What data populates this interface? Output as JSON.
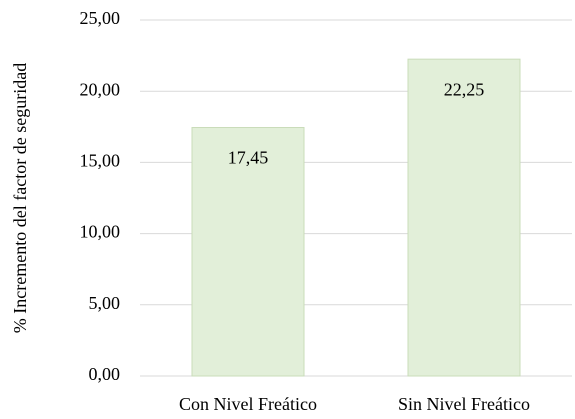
{
  "chart_data": {
    "type": "bar",
    "y_label": "% Incremento del factor de seguridad",
    "categories": [
      "Con Nivel Freático",
      "Sin Nivel Freático"
    ],
    "values": [
      17.45,
      22.25
    ],
    "value_labels": [
      "17,45",
      "22,25"
    ],
    "color": "#e2efd9",
    "ylim": [
      0,
      25
    ],
    "yticks": [
      {
        "value": 0,
        "label": "0,00"
      },
      {
        "value": 5,
        "label": "5,00"
      },
      {
        "value": 10,
        "label": "10,00"
      },
      {
        "value": 15,
        "label": "15,00"
      },
      {
        "value": 20,
        "label": "20,00"
      },
      {
        "value": 25,
        "label": "25,00"
      }
    ],
    "grid": true
  }
}
